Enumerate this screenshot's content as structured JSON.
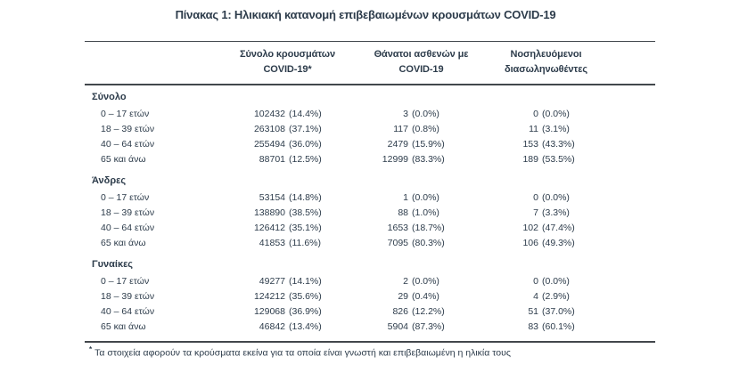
{
  "page": {
    "background_color": "#ffffff",
    "text_color": "#2d3c4b",
    "rule_color": "#42474c"
  },
  "title": "Πίνακας 1: Ηλικιακή κατανομή επιβεβαιωμένων κρουσμάτων COVID-19",
  "table": {
    "columns": [
      {
        "line1": "Σύνολο κρουσμάτων",
        "line2": "COVID-19*"
      },
      {
        "line1": "Θάνατοι ασθενών με",
        "line2": "COVID-19"
      },
      {
        "line1": "Νοσηλευόμενοι",
        "line2": "διασωληνωθέντες"
      }
    ],
    "sections": [
      {
        "header": "Σύνολο",
        "rows": [
          {
            "label": "0 – 17 ετών",
            "cases": "102432",
            "cases_pct": "(14.4%)",
            "deaths": "3",
            "deaths_pct": "(0.0%)",
            "intubated": "0",
            "intubated_pct": "(0.0%)"
          },
          {
            "label": "18 – 39 ετών",
            "cases": "263108",
            "cases_pct": "(37.1%)",
            "deaths": "117",
            "deaths_pct": "(0.8%)",
            "intubated": "11",
            "intubated_pct": "(3.1%)"
          },
          {
            "label": "40 – 64 ετών",
            "cases": "255494",
            "cases_pct": "(36.0%)",
            "deaths": "2479",
            "deaths_pct": "(15.9%)",
            "intubated": "153",
            "intubated_pct": "(43.3%)"
          },
          {
            "label": "65 και άνω",
            "cases": "88701",
            "cases_pct": "(12.5%)",
            "deaths": "12999",
            "deaths_pct": "(83.3%)",
            "intubated": "189",
            "intubated_pct": "(53.5%)"
          }
        ]
      },
      {
        "header": "Άνδρες",
        "rows": [
          {
            "label": "0 – 17 ετών",
            "cases": "53154",
            "cases_pct": "(14.8%)",
            "deaths": "1",
            "deaths_pct": "(0.0%)",
            "intubated": "0",
            "intubated_pct": "(0.0%)"
          },
          {
            "label": "18 – 39 ετών",
            "cases": "138890",
            "cases_pct": "(38.5%)",
            "deaths": "88",
            "deaths_pct": "(1.0%)",
            "intubated": "7",
            "intubated_pct": "(3.3%)"
          },
          {
            "label": "40 – 64 ετών",
            "cases": "126412",
            "cases_pct": "(35.1%)",
            "deaths": "1653",
            "deaths_pct": "(18.7%)",
            "intubated": "102",
            "intubated_pct": "(47.4%)"
          },
          {
            "label": "65 και άνω",
            "cases": "41853",
            "cases_pct": "(11.6%)",
            "deaths": "7095",
            "deaths_pct": "(80.3%)",
            "intubated": "106",
            "intubated_pct": "(49.3%)"
          }
        ]
      },
      {
        "header": "Γυναίκες",
        "rows": [
          {
            "label": "0 – 17 ετών",
            "cases": "49277",
            "cases_pct": "(14.1%)",
            "deaths": "2",
            "deaths_pct": "(0.0%)",
            "intubated": "0",
            "intubated_pct": "(0.0%)"
          },
          {
            "label": "18 – 39 ετών",
            "cases": "124212",
            "cases_pct": "(35.6%)",
            "deaths": "29",
            "deaths_pct": "(0.4%)",
            "intubated": "4",
            "intubated_pct": "(2.9%)"
          },
          {
            "label": "40 – 64 ετών",
            "cases": "129068",
            "cases_pct": "(36.9%)",
            "deaths": "826",
            "deaths_pct": "(12.2%)",
            "intubated": "51",
            "intubated_pct": "(37.0%)"
          },
          {
            "label": "65 και άνω",
            "cases": "46842",
            "cases_pct": "(13.4%)",
            "deaths": "5904",
            "deaths_pct": "(87.3%)",
            "intubated": "83",
            "intubated_pct": "(60.1%)"
          }
        ]
      }
    ]
  },
  "footnote": {
    "marker": "*",
    "text": "Τα στοιχεία αφορούν τα κρούσματα εκείνα για τα οποία είναι γνωστή και επιβεβαιωμένη η ηλικία τους"
  }
}
